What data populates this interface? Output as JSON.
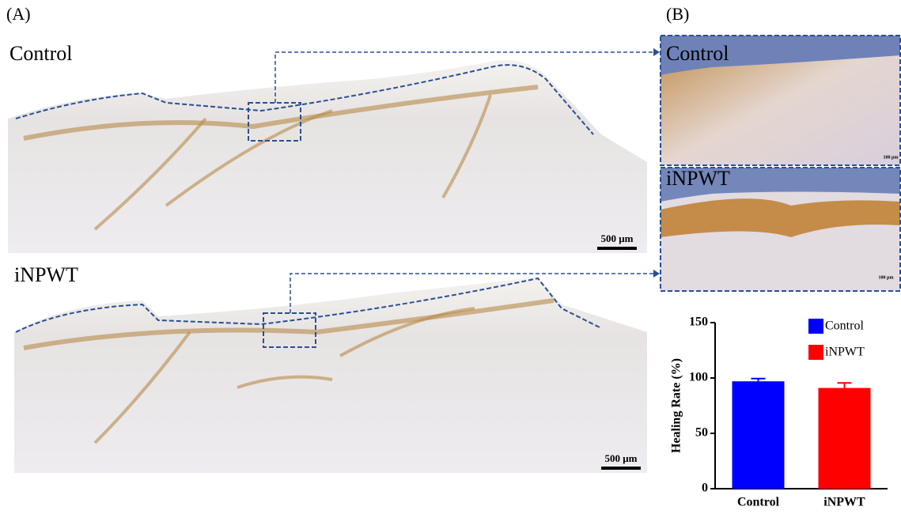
{
  "panels": {
    "a_label": "(A)",
    "b_label": "(B)",
    "a_top": "Control",
    "a_bottom": "iNPWT",
    "b_top": "Control",
    "b_bottom": "iNPWT",
    "scale_a_top": "500 μm",
    "scale_a_bottom": "500 μm",
    "scale_b_top": "100 μm",
    "scale_b_bottom": "100 μm"
  },
  "chart_data": {
    "type": "bar",
    "y_label": "Healing Rate (%)",
    "categories": [
      "Control",
      "iNPWT"
    ],
    "values": [
      97,
      91
    ],
    "errors": [
      2.5,
      4.5
    ],
    "colors": [
      "#0000ff",
      "#ff0000"
    ],
    "ylim": [
      0,
      150
    ],
    "yticks": [
      0,
      50,
      100,
      150
    ],
    "legend": "top-right"
  }
}
